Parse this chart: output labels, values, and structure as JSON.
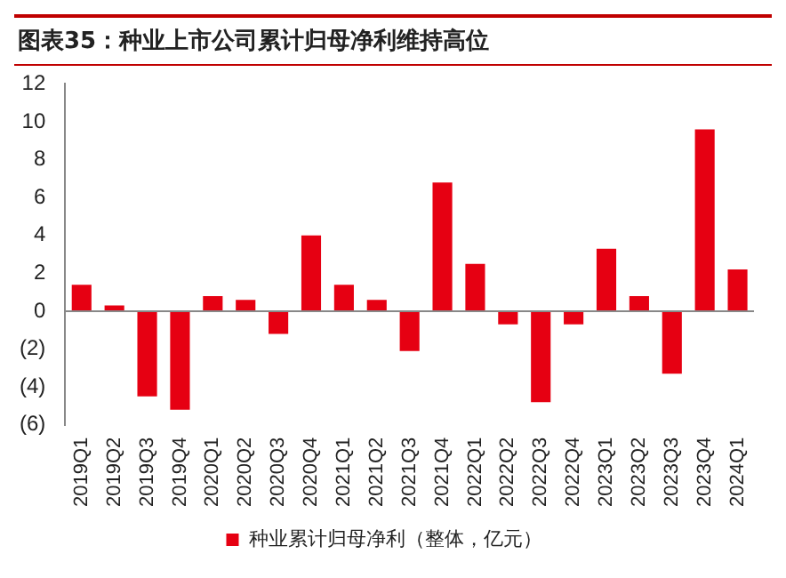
{
  "chart_data": {
    "type": "bar",
    "title": "图表35：种业上市公司累计归母净利维持高位",
    "categories": [
      "2019Q1",
      "2019Q2",
      "2019Q3",
      "2019Q4",
      "2020Q1",
      "2020Q2",
      "2020Q3",
      "2020Q4",
      "2021Q1",
      "2021Q2",
      "2021Q3",
      "2021Q4",
      "2022Q1",
      "2022Q2",
      "2022Q3",
      "2022Q4",
      "2023Q1",
      "2023Q2",
      "2023Q3",
      "2023Q4",
      "2024Q1"
    ],
    "series": [
      {
        "name": "种业累计归母净利（整体，亿元）",
        "color": "#e60012",
        "values": [
          1.4,
          0.3,
          -4.5,
          -5.2,
          0.8,
          0.6,
          -1.2,
          4.0,
          1.4,
          0.6,
          -2.1,
          6.8,
          2.5,
          -0.7,
          -4.8,
          -0.7,
          3.3,
          0.8,
          -3.3,
          9.6,
          2.2
        ]
      }
    ],
    "ylim": [
      -6,
      12
    ],
    "yticks": [
      {
        "value": -6,
        "label": "(6)"
      },
      {
        "value": -4,
        "label": "(4)"
      },
      {
        "value": -2,
        "label": "(2)"
      },
      0,
      2,
      4,
      6,
      8,
      10,
      12
    ],
    "ref_lines": [
      {
        "axis": "y",
        "value": 0,
        "color": "#888888"
      }
    ],
    "grid": false,
    "legend": "bottom"
  }
}
